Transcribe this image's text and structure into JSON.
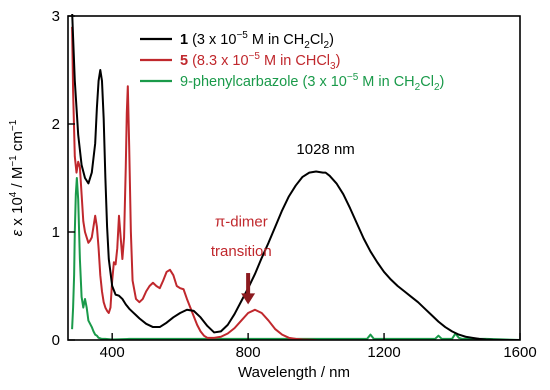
{
  "chart_data": {
    "type": "line",
    "xlabel": "Wavelength / nm",
    "ylabel_parts": {
      "eps": "ε",
      "mid": " x 10",
      "exp4": "4",
      "unit": " / M",
      "exp_m1a": "−1",
      "cm": " cm",
      "exp_m1b": "−1"
    },
    "xlim": [
      270,
      1600
    ],
    "ylim": [
      0,
      3
    ],
    "x_ticks": [
      400,
      800,
      1200,
      1600
    ],
    "x_tick_labels": [
      "400",
      "800",
      "1200",
      "1600"
    ],
    "y_ticks": [
      0,
      1,
      2,
      3
    ],
    "y_tick_labels": [
      "0",
      "1",
      "2",
      "3"
    ],
    "grid": false,
    "legend_placement": "top-right",
    "legend": [
      {
        "bold": "1",
        "pre": " (3 x 10",
        "sup": "−5",
        "mid": " M in CH",
        "sub1": "2",
        "mid2": "Cl",
        "sub2": "2",
        "post": ")",
        "color": "#000000"
      },
      {
        "bold": "5",
        "pre": " (8.3 x 10",
        "sup": "−5",
        "mid": " M in CHCl",
        "sub1": "3",
        "mid2": "",
        "sub2": "",
        "post": ")",
        "color": "#c0282d"
      },
      {
        "bold": "",
        "pre": "9-phenylcarbazole (3 x 10",
        "sup": "−5",
        "mid": " M in CH",
        "sub1": "2",
        "mid2": "Cl",
        "sub2": "2",
        "post": ")",
        "color": "#1a9a4a"
      }
    ],
    "annotations": {
      "peak_label": {
        "text": "1028 nm",
        "x": 1028,
        "y": 1.72
      },
      "dimer_line1": {
        "text": "π-dimer",
        "x": 780,
        "y": 1.05
      },
      "dimer_line2": {
        "text": "transition",
        "x": 780,
        "y": 0.78
      },
      "arrow": {
        "x": 800,
        "y_from": 0.62,
        "y_to": 0.33
      }
    },
    "series": [
      {
        "name": "1",
        "color": "#000000",
        "x": [
          282,
          285,
          290,
          300,
          310,
          320,
          330,
          340,
          350,
          355,
          360,
          365,
          370,
          375,
          380,
          385,
          390,
          400,
          410,
          420,
          430,
          440,
          450,
          460,
          470,
          480,
          500,
          520,
          540,
          560,
          580,
          600,
          620,
          640,
          660,
          680,
          700,
          720,
          740,
          760,
          780,
          800,
          820,
          840,
          860,
          880,
          900,
          920,
          940,
          960,
          980,
          1000,
          1020,
          1028,
          1040,
          1060,
          1080,
          1100,
          1120,
          1140,
          1160,
          1180,
          1200,
          1220,
          1240,
          1260,
          1280,
          1300,
          1320,
          1340,
          1360,
          1380,
          1400,
          1420,
          1440,
          1460,
          1480,
          1500,
          1520,
          1540,
          1560,
          1580,
          1600
        ],
        "y": [
          3.05,
          2.8,
          2.4,
          1.9,
          1.62,
          1.5,
          1.45,
          1.55,
          1.82,
          2.15,
          2.4,
          2.5,
          2.4,
          2.05,
          1.5,
          1.05,
          0.75,
          0.5,
          0.42,
          0.41,
          0.38,
          0.33,
          0.29,
          0.26,
          0.23,
          0.2,
          0.15,
          0.12,
          0.12,
          0.16,
          0.21,
          0.25,
          0.28,
          0.27,
          0.21,
          0.13,
          0.07,
          0.08,
          0.14,
          0.24,
          0.36,
          0.48,
          0.61,
          0.76,
          0.9,
          1.05,
          1.2,
          1.33,
          1.43,
          1.51,
          1.55,
          1.56,
          1.55,
          1.55,
          1.52,
          1.45,
          1.35,
          1.22,
          1.08,
          0.94,
          0.82,
          0.72,
          0.63,
          0.56,
          0.5,
          0.45,
          0.4,
          0.35,
          0.29,
          0.23,
          0.17,
          0.12,
          0.08,
          0.05,
          0.03,
          0.02,
          0.01,
          0.005,
          0.002,
          0.001,
          0.0,
          0.0,
          0.0
        ]
      },
      {
        "name": "5",
        "color": "#c0282d",
        "x": [
          282,
          285,
          290,
          295,
          300,
          305,
          310,
          315,
          320,
          325,
          330,
          335,
          340,
          345,
          350,
          355,
          360,
          365,
          370,
          375,
          380,
          385,
          390,
          395,
          400,
          405,
          410,
          415,
          420,
          425,
          430,
          435,
          440,
          443,
          446,
          450,
          455,
          460,
          470,
          480,
          490,
          500,
          510,
          520,
          530,
          540,
          550,
          560,
          570,
          580,
          590,
          600,
          610,
          620,
          630,
          640,
          650,
          660,
          670,
          680,
          700,
          720,
          740,
          760,
          780,
          800,
          820,
          840,
          860,
          880,
          900,
          920,
          940,
          960,
          980,
          1000
        ],
        "y": [
          2.9,
          2.3,
          1.7,
          1.55,
          1.65,
          1.6,
          1.35,
          1.1,
          1.0,
          0.95,
          0.9,
          0.92,
          0.95,
          1.05,
          1.15,
          1.05,
          0.85,
          0.6,
          0.45,
          0.35,
          0.3,
          0.27,
          0.25,
          0.3,
          0.55,
          0.72,
          0.7,
          0.85,
          1.15,
          0.95,
          0.75,
          0.95,
          1.6,
          2.1,
          2.35,
          1.8,
          1.0,
          0.55,
          0.38,
          0.35,
          0.38,
          0.45,
          0.5,
          0.53,
          0.5,
          0.48,
          0.55,
          0.63,
          0.65,
          0.6,
          0.5,
          0.48,
          0.47,
          0.38,
          0.3,
          0.22,
          0.14,
          0.08,
          0.04,
          0.02,
          0.02,
          0.03,
          0.06,
          0.11,
          0.18,
          0.25,
          0.28,
          0.25,
          0.18,
          0.1,
          0.05,
          0.02,
          0.01,
          0.005,
          0.002,
          0.0
        ]
      },
      {
        "name": "9-phenylcarbazole",
        "color": "#1a9a4a",
        "x": [
          282,
          285,
          288,
          290,
          293,
          296,
          300,
          305,
          310,
          315,
          320,
          325,
          330,
          335,
          340,
          345,
          350,
          355,
          360,
          370,
          380,
          400,
          450,
          500,
          600,
          700,
          800,
          900,
          1000,
          1100,
          1150,
          1160,
          1170,
          1200,
          1300,
          1350,
          1360,
          1370,
          1400,
          1410,
          1420,
          1430,
          1500,
          1600
        ],
        "y": [
          0.1,
          0.3,
          0.6,
          1.0,
          1.35,
          1.5,
          1.3,
          0.75,
          0.4,
          0.3,
          0.38,
          0.3,
          0.18,
          0.15,
          0.12,
          0.08,
          0.05,
          0.04,
          0.02,
          0.01,
          0.01,
          0.005,
          0.01,
          0.01,
          0.01,
          0.01,
          0.01,
          0.01,
          0.01,
          0.01,
          0.01,
          0.05,
          0.01,
          0.01,
          0.01,
          0.01,
          0.04,
          0.01,
          0.01,
          0.06,
          0.02,
          0.01,
          0.01,
          0.0
        ]
      }
    ]
  }
}
